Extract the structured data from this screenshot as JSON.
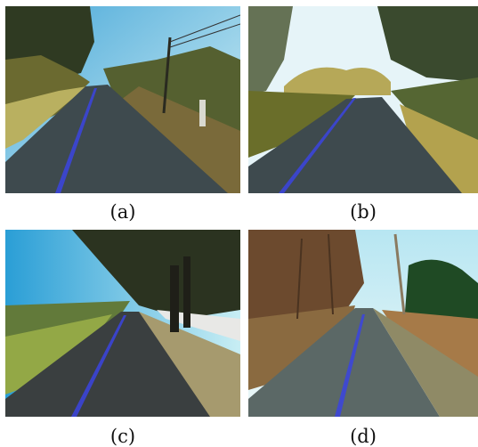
{
  "figure": {
    "panels": [
      {
        "id": "a",
        "caption": "(a)"
      },
      {
        "id": "b",
        "caption": "(b)"
      },
      {
        "id": "c",
        "caption": "(c)"
      },
      {
        "id": "d",
        "caption": "(d)"
      }
    ]
  },
  "colors": {
    "lane_marker": "#3b44e0",
    "road": "#3e4a4e",
    "sky": "#9fd6ef"
  }
}
